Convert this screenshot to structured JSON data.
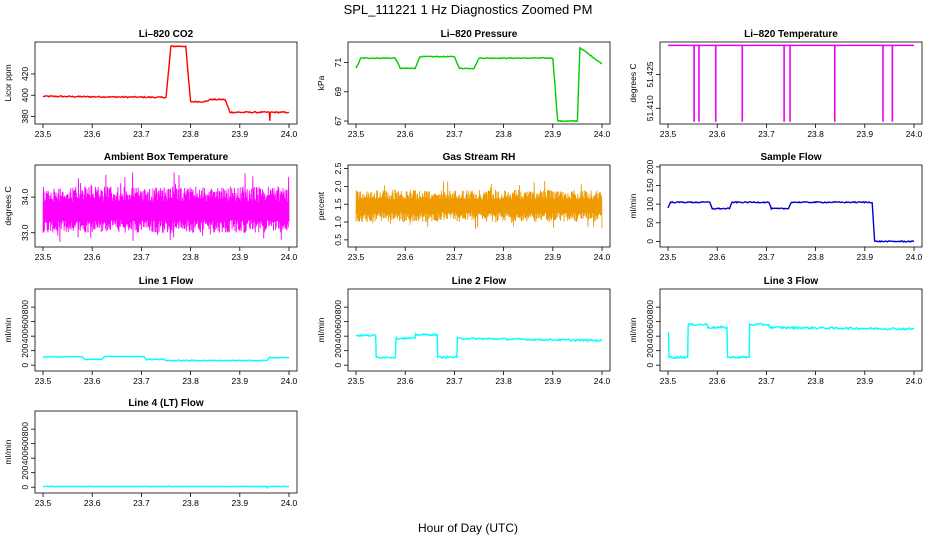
{
  "figure": {
    "title": "SPL_111221  1 Hz Diagnostics Zoomed PM",
    "xlabel": "Hour of Day (UTC)"
  },
  "chart_data": [
    {
      "type": "line",
      "title": "Li–820 CO2",
      "ylabel": "Licor ppm",
      "color": "#ff0000",
      "xlim": [
        23.5,
        24.0
      ],
      "ylim": [
        373,
        450
      ],
      "yticks": [
        380,
        400,
        420
      ],
      "ytick_labels": [
        "380",
        "400",
        "420"
      ],
      "xticks": [
        23.5,
        23.6,
        23.7,
        23.8,
        23.9,
        24.0
      ],
      "xtick_labels": [
        "23.5",
        "23.6",
        "23.7",
        "23.8",
        "23.9",
        "24.0"
      ],
      "noise": 0.6,
      "series": [
        {
          "name": "CO2",
          "x": [
            23.5,
            23.75,
            23.76,
            23.79,
            23.8,
            23.83,
            23.84,
            23.87,
            23.88,
            23.96,
            23.961,
            23.962,
            23.97,
            24.0
          ],
          "y": [
            399,
            398,
            446,
            446,
            394,
            394,
            396,
            396,
            384,
            384,
            376,
            384,
            384,
            384
          ]
        }
      ]
    },
    {
      "type": "line",
      "title": "Li–820 Pressure",
      "ylabel": "kPa",
      "color": "#00cc00",
      "xlim": [
        23.5,
        24.0
      ],
      "ylim": [
        66.8,
        72.4
      ],
      "yticks": [
        67,
        69,
        71
      ],
      "ytick_labels": [
        "67",
        "69",
        "71"
      ],
      "xticks": [
        23.5,
        23.6,
        23.7,
        23.8,
        23.9,
        24.0
      ],
      "xtick_labels": [
        "23.5",
        "23.6",
        "23.7",
        "23.8",
        "23.9",
        "24.0"
      ],
      "noise": 0.03,
      "series": [
        {
          "name": "Pressure",
          "x": [
            23.5,
            23.51,
            23.58,
            23.59,
            23.62,
            23.63,
            23.7,
            23.71,
            23.74,
            23.75,
            23.9,
            23.91,
            23.95,
            23.955,
            23.96,
            24.0
          ],
          "y": [
            70.6,
            71.3,
            71.3,
            70.6,
            70.6,
            71.4,
            71.4,
            70.6,
            70.6,
            71.3,
            71.3,
            67.0,
            67.0,
            72.0,
            71.9,
            70.9
          ]
        }
      ]
    },
    {
      "type": "line",
      "title": "Li–820 Temperature",
      "ylabel": "degrees C",
      "color": "#ee00ee",
      "xlim": [
        23.5,
        24.0
      ],
      "ylim": [
        51.403,
        51.4395
      ],
      "yticks": [
        51.41,
        51.425
      ],
      "ytick_labels": [
        "51.410",
        "51.425"
      ],
      "xticks": [
        23.5,
        23.6,
        23.7,
        23.8,
        23.9,
        24.0
      ],
      "xtick_labels": [
        "23.5",
        "23.6",
        "23.7",
        "23.8",
        "23.9",
        "24.0"
      ],
      "noise": 0,
      "baseline": 51.438,
      "spikes": [
        23.553,
        23.563,
        23.597,
        23.651,
        23.736,
        23.748,
        23.839,
        23.937,
        23.956
      ],
      "spike_low": 51.404
    },
    {
      "type": "noise",
      "title": "Ambient Box Temperature",
      "ylabel": "degrees C",
      "color": "#ff00ff",
      "xlim": [
        23.5,
        24.0
      ],
      "ylim": [
        32.6,
        34.9
      ],
      "yticks": [
        33.0,
        34.0
      ],
      "ytick_labels": [
        "33.0",
        "34.0"
      ],
      "xticks": [
        23.5,
        23.6,
        23.7,
        23.8,
        23.9,
        24.0
      ],
      "xtick_labels": [
        "23.5",
        "23.6",
        "23.7",
        "23.8",
        "23.9",
        "24.0"
      ],
      "noise_low": 33.0,
      "noise_high": 34.3,
      "center": 33.6
    },
    {
      "type": "noise",
      "title": "Gas Stream RH",
      "ylabel": "percent",
      "color": "#ee9a00",
      "xlim": [
        23.5,
        24.0
      ],
      "ylim": [
        0.3,
        2.6
      ],
      "yticks": [
        0.5,
        1.0,
        1.5,
        2.0,
        2.5
      ],
      "ytick_labels": [
        "0.5",
        "1.0",
        "1.5",
        "2.0",
        "2.5"
      ],
      "xticks": [
        23.5,
        23.6,
        23.7,
        23.8,
        23.9,
        24.0
      ],
      "xtick_labels": [
        "23.5",
        "23.6",
        "23.7",
        "23.8",
        "23.9",
        "24.0"
      ],
      "noise_low": 1.0,
      "noise_high": 1.9,
      "center": 1.45
    },
    {
      "type": "line",
      "title": "Sample Flow",
      "ylabel": "ml/min",
      "color": "#0000cc",
      "xlim": [
        23.5,
        24.0
      ],
      "ylim": [
        -15,
        205
      ],
      "yticks": [
        0,
        50,
        100,
        150,
        200
      ],
      "ytick_labels": [
        "0",
        "50",
        "100",
        "150",
        "200"
      ],
      "xticks": [
        23.5,
        23.6,
        23.7,
        23.8,
        23.9,
        24.0
      ],
      "xtick_labels": [
        "23.5",
        "23.6",
        "23.7",
        "23.8",
        "23.9",
        "24.0"
      ],
      "noise": 1.5,
      "series": [
        {
          "name": "Sample Flow",
          "x": [
            23.5,
            23.505,
            23.585,
            23.59,
            23.625,
            23.63,
            23.705,
            23.71,
            23.745,
            23.75,
            23.915,
            23.92,
            24.0
          ],
          "y": [
            90,
            105,
            105,
            88,
            88,
            105,
            105,
            88,
            88,
            105,
            105,
            0,
            0
          ]
        }
      ]
    },
    {
      "type": "line",
      "title": "Line 1 Flow",
      "ylabel": "ml/min",
      "color": "#00ffff",
      "xlim": [
        23.5,
        24.0
      ],
      "ylim": [
        -80,
        1050
      ],
      "yticks": [
        0,
        200,
        400,
        600,
        800
      ],
      "ytick_labels": [
        "0",
        "200",
        "400",
        "600",
        "800"
      ],
      "xticks": [
        23.5,
        23.6,
        23.7,
        23.8,
        23.9,
        24.0
      ],
      "xtick_labels": [
        "23.5",
        "23.6",
        "23.7",
        "23.8",
        "23.9",
        "24.0"
      ],
      "noise": 6,
      "series": [
        {
          "name": "Line 1",
          "x": [
            23.5,
            23.58,
            23.585,
            23.62,
            23.625,
            23.705,
            23.71,
            23.745,
            23.75,
            23.955,
            23.96,
            24.0
          ],
          "y": [
            115,
            115,
            80,
            80,
            120,
            120,
            80,
            80,
            65,
            65,
            105,
            105
          ]
        }
      ]
    },
    {
      "type": "line",
      "title": "Line 2 Flow",
      "ylabel": "ml/min",
      "color": "#00ffff",
      "xlim": [
        23.5,
        24.0
      ],
      "ylim": [
        -80,
        1050
      ],
      "yticks": [
        0,
        200,
        400,
        600,
        800
      ],
      "ytick_labels": [
        "0",
        "200",
        "400",
        "600",
        "800"
      ],
      "xticks": [
        23.5,
        23.6,
        23.7,
        23.8,
        23.9,
        24.0
      ],
      "xtick_labels": [
        "23.5",
        "23.6",
        "23.7",
        "23.8",
        "23.9",
        "24.0"
      ],
      "noise": 12,
      "series": [
        {
          "name": "Line 2",
          "x": [
            23.5,
            23.54,
            23.541,
            23.58,
            23.581,
            23.62,
            23.621,
            23.665,
            23.666,
            23.705,
            23.706,
            24.0
          ],
          "y": [
            410,
            410,
            110,
            110,
            370,
            370,
            420,
            420,
            110,
            110,
            370,
            340
          ]
        }
      ]
    },
    {
      "type": "line",
      "title": "Line 3 Flow",
      "ylabel": "ml/min",
      "color": "#00ffff",
      "xlim": [
        23.5,
        24.0
      ],
      "ylim": [
        -80,
        1050
      ],
      "yticks": [
        0,
        200,
        400,
        600,
        800
      ],
      "ytick_labels": [
        "0",
        "200",
        "400",
        "600",
        "800"
      ],
      "xticks": [
        23.5,
        23.6,
        23.7,
        23.8,
        23.9,
        24.0
      ],
      "xtick_labels": [
        "23.5",
        "23.6",
        "23.7",
        "23.8",
        "23.9",
        "24.0"
      ],
      "noise": 14,
      "series": [
        {
          "name": "Line 3",
          "x": [
            23.5,
            23.501,
            23.502,
            23.54,
            23.541,
            23.58,
            23.581,
            23.62,
            23.621,
            23.665,
            23.666,
            23.705,
            23.706,
            24.0
          ],
          "y": [
            450,
            450,
            110,
            110,
            560,
            560,
            520,
            520,
            110,
            110,
            560,
            560,
            520,
            500
          ]
        }
      ]
    },
    {
      "type": "line",
      "title": "Line 4 (LT) Flow",
      "ylabel": "ml/min",
      "color": "#00ffff",
      "xlim": [
        23.5,
        24.0
      ],
      "ylim": [
        -80,
        1050
      ],
      "yticks": [
        0,
        200,
        400,
        600,
        800
      ],
      "ytick_labels": [
        "0",
        "200",
        "400",
        "600",
        "800"
      ],
      "xticks": [
        23.5,
        23.6,
        23.7,
        23.8,
        23.9,
        24.0
      ],
      "xtick_labels": [
        "23.5",
        "23.6",
        "23.7",
        "23.8",
        "23.9",
        "24.0"
      ],
      "noise": 3,
      "series": [
        {
          "name": "Line 4",
          "x": [
            23.5,
            23.955,
            23.956,
            23.958,
            24.0
          ],
          "y": [
            10,
            10,
            -10,
            10,
            10
          ]
        }
      ]
    }
  ]
}
